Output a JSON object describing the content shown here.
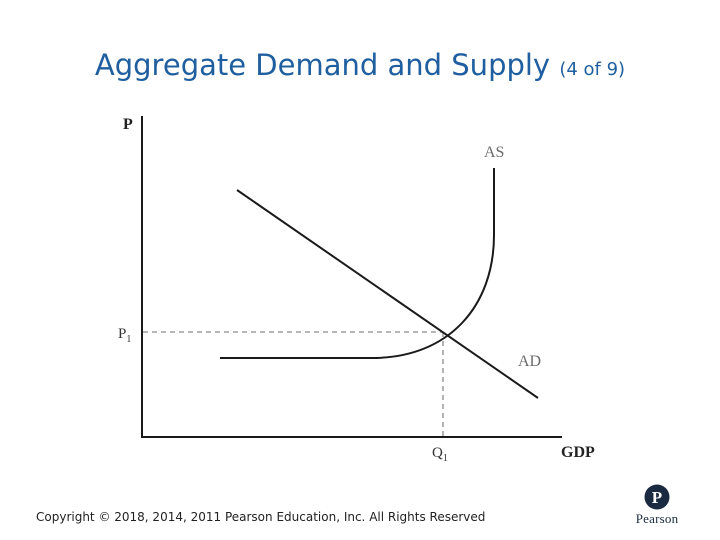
{
  "slide": {
    "title_main": "Aggregate Demand and Supply",
    "title_sub": "(4 of 9)",
    "copyright": "Copyright © 2018, 2014, 2011 Pearson Education, Inc. All Rights Reserved",
    "logo_text": "Pearson",
    "logo_letter": "P"
  },
  "diagram": {
    "y_axis_label": "P",
    "x_axis_label": "GDP",
    "curves": [
      {
        "name": "AS",
        "label": "AS"
      },
      {
        "name": "AD",
        "label": "AD"
      }
    ],
    "equilibrium": {
      "price_label": {
        "base": "P",
        "sub": "1"
      },
      "quantity_label": {
        "base": "Q",
        "sub": "1"
      }
    }
  },
  "colors": {
    "title": "#1f5fa0",
    "curve": "#1a1a1a",
    "guide": "#8a8a8a",
    "logo": "#1a2a40"
  }
}
